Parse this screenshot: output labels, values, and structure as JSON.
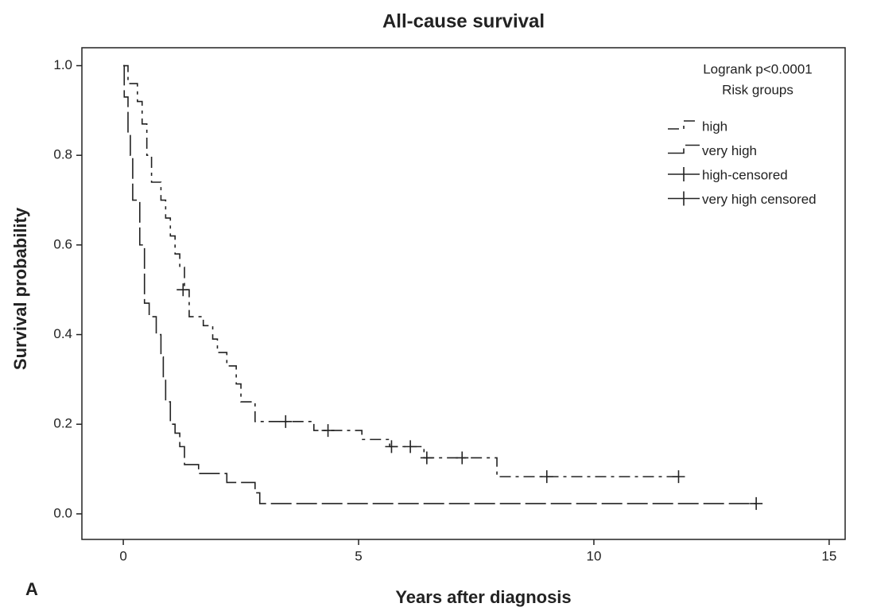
{
  "chart_data": {
    "type": "step",
    "title": "All-cause survival",
    "xlabel": "Years after diagnosis",
    "ylabel": "Survival probability",
    "annotations": [
      "Logrank p<0.0001",
      "Risk groups"
    ],
    "panel_label": "A",
    "xlim": [
      -0.88,
      15.34
    ],
    "ylim": [
      -0.057,
      1.04
    ],
    "xticks": [
      0,
      5,
      10,
      15
    ],
    "yticks": [
      {
        "value": 0,
        "label": "0.0"
      },
      0.2,
      0.4,
      0.6,
      0.8,
      {
        "value": 1,
        "label": "1.0"
      }
    ],
    "series": [
      {
        "name": "high",
        "color": "#222222",
        "dash": "14 6 4 6",
        "x": [
          0,
          0.1,
          0.3,
          0.4,
          0.5,
          0.6,
          0.8,
          0.9,
          1.0,
          1.1,
          1.2,
          1.3,
          1.4,
          1.7,
          1.9,
          2.0,
          2.2,
          2.4,
          2.5,
          2.8,
          4.05,
          5.07,
          5.66,
          6.39,
          7.94,
          11.8
        ],
        "values": [
          1.0,
          0.96,
          0.92,
          0.87,
          0.8,
          0.74,
          0.7,
          0.66,
          0.62,
          0.58,
          0.55,
          0.5,
          0.44,
          0.42,
          0.39,
          0.36,
          0.33,
          0.29,
          0.25,
          0.206,
          0.186,
          0.166,
          0.15,
          0.125,
          0.083,
          0.083
        ]
      },
      {
        "name": "very high",
        "color": "#222222",
        "dash": "26 6",
        "x": [
          0,
          0.02,
          0.1,
          0.15,
          0.2,
          0.35,
          0.45,
          0.55,
          0.7,
          0.8,
          0.85,
          0.9,
          1.0,
          1.1,
          1.2,
          1.3,
          1.6,
          2.2,
          2.8,
          2.9,
          13.45
        ],
        "values": [
          1.0,
          0.93,
          0.85,
          0.8,
          0.7,
          0.6,
          0.47,
          0.44,
          0.4,
          0.35,
          0.3,
          0.25,
          0.2,
          0.18,
          0.15,
          0.11,
          0.09,
          0.07,
          0.047,
          0.023,
          0.023
        ]
      },
      {
        "name": "high-censored",
        "color": "#222222",
        "marker": "plus",
        "x": [
          1.27,
          3.45,
          4.35,
          5.7,
          6.1,
          6.45,
          7.2,
          9.0,
          11.8
        ],
        "values": [
          0.5,
          0.206,
          0.186,
          0.15,
          0.15,
          0.125,
          0.125,
          0.083,
          0.083
        ]
      },
      {
        "name": "very high censored",
        "color": "#222222",
        "marker": "plus",
        "x": [
          13.45
        ],
        "values": [
          0.023
        ]
      }
    ]
  }
}
